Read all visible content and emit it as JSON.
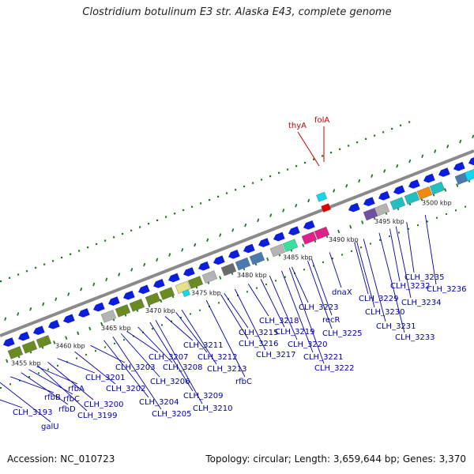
{
  "title": "Clostridium botulinum E3 str. Alaska E43, complete genome",
  "footer": {
    "accession": "Accession: NC_010723",
    "summary": "Topology: circular; Length: 3,659,644 bp; Genes: 3,370"
  },
  "colors": {
    "gene_label": "#0000a8",
    "highlight_label": "#20b8e0",
    "feature_label": "#cc0000",
    "cds_arrow": "#0a1edc",
    "backbone": "#8a8a8a",
    "tick": "#1a7a1a",
    "olive": "#6a8a22",
    "teal": "#20c0c0",
    "pink": "#e0208a",
    "gray": "#b4b4b4",
    "dark_gray": "#6a6a6a",
    "steel_blue": "#4a7ab0",
    "orange": "#f08a10",
    "cyan": "#10d8f0",
    "mint": "#38e0a0",
    "yellow": "#e6e08a",
    "purple": "#7050a0",
    "red": "#e00000"
  },
  "kbp_ticks": [
    "3455 kbp",
    "3460 kbp",
    "3465 kbp",
    "3470 kbp",
    "3475 kbp",
    "3480 kbp",
    "3485 kbp",
    "3490 kbp",
    "3495 kbp",
    "3500 kbp"
  ],
  "features": [
    "thyA",
    "folA"
  ],
  "genes": [
    "CLH_3193",
    "galU",
    "rfbB",
    "rfbD",
    "rfbC",
    "rfbA",
    "CLH_3199",
    "CLH_3200",
    "CLH_3201",
    "CLH_3202",
    "CLH_3203",
    "CLH_3204",
    "CLH_3205",
    "CLH_3206",
    "CLH_3207",
    "CLH_3208",
    "CLH_3209",
    "CLH_3210",
    "CLH_3211",
    "CLH_3212",
    "CLH_3213",
    "rfbC",
    "CLH_3215",
    "CLH_3216",
    "CLH_3217",
    "CLH_3218",
    "CLH_3219",
    "CLH_3220",
    "CLH_3221",
    "CLH_3222",
    "CLH_3223",
    "recR",
    "CLH_3225",
    "dnaX",
    "CLH_3229",
    "CLH_3230",
    "CLH_3231",
    "CLH_3232",
    "CLH_3233",
    "CLH_3234",
    "CLH_3235",
    "CLH_3236"
  ]
}
